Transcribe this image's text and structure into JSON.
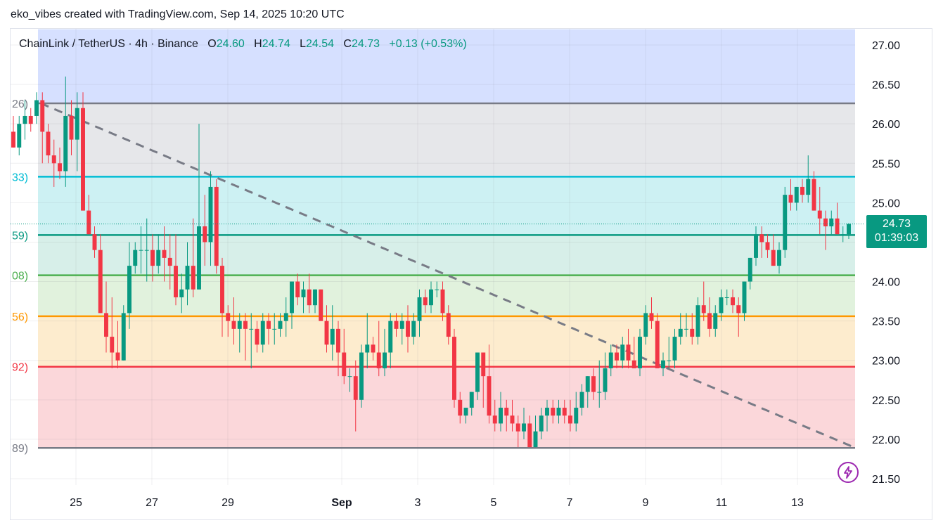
{
  "header": {
    "text": "eko_vibes created with TradingView.com, Sep 14, 2025 10:20 UTC"
  },
  "symbol": {
    "name": "ChainLink / TetherUS · 4h · Binance",
    "o_label": "O",
    "o": "24.60",
    "h_label": "H",
    "h": "24.74",
    "l_label": "L",
    "l": "24.54",
    "c_label": "C",
    "c": "24.73",
    "change": "+0.13 (+0.53%)"
  },
  "price_tag": {
    "price": "24.73",
    "countdown": "01:39:03"
  },
  "colors": {
    "up": "#089981",
    "down": "#f23645",
    "trendline": "#787b86",
    "bolt": "#9c27b0"
  },
  "icons": {
    "bolt": "lightning-bolt-icon"
  },
  "chart_data": {
    "type": "candlestick",
    "yaxis": {
      "ticks": [
        "27.00",
        "26.50",
        "26.00",
        "25.50",
        "25.00",
        "24.50",
        "24.00",
        "23.50",
        "23.00",
        "22.50",
        "22.00",
        "21.50"
      ],
      "range": [
        21.45,
        27.2
      ]
    },
    "xaxis": {
      "ticks": [
        "25",
        "27",
        "29",
        "Sep",
        "3",
        "5",
        "7",
        "9",
        "11",
        "13"
      ]
    },
    "fib_levels": [
      {
        "price": 26.26,
        "label": "26)",
        "color": "#787b86"
      },
      {
        "price": 25.33,
        "label": "33)",
        "color": "#00bcd4"
      },
      {
        "price": 24.59,
        "label": "59)",
        "color": "#089981"
      },
      {
        "price": 24.08,
        "label": "08)",
        "color": "#4caf50"
      },
      {
        "price": 23.56,
        "label": "56)",
        "color": "#ff9800"
      },
      {
        "price": 22.92,
        "label": "92)",
        "color": "#f23645"
      },
      {
        "price": 21.89,
        "label": "89)",
        "color": "#787b86"
      }
    ],
    "zones": [
      {
        "from": 26.26,
        "to": 27.2,
        "color": "#d6e0ff"
      },
      {
        "from": 25.33,
        "to": 26.26,
        "color": "#e6e7ea"
      },
      {
        "from": 24.59,
        "to": 25.33,
        "color": "#cdf1f3"
      },
      {
        "from": 24.08,
        "to": 24.59,
        "color": "#d7efe9"
      },
      {
        "from": 23.56,
        "to": 24.08,
        "color": "#e1f2dd"
      },
      {
        "from": 22.92,
        "to": 23.56,
        "color": "#fdecce"
      },
      {
        "from": 21.89,
        "to": 22.92,
        "color": "#fbd7da"
      }
    ],
    "trendline": {
      "from": {
        "date": "Aug 24",
        "price": 26.26
      },
      "to": {
        "date": "Sep 14",
        "price": 21.9
      }
    },
    "last_price": 24.73,
    "candles": [
      [
        25.9,
        26.1,
        25.7,
        25.7
      ],
      [
        25.7,
        26.1,
        25.6,
        26.0
      ],
      [
        26.0,
        26.3,
        25.8,
        26.1
      ],
      [
        26.1,
        26.2,
        25.9,
        26.0
      ],
      [
        26.1,
        26.4,
        26.0,
        26.3
      ],
      [
        26.3,
        26.4,
        25.5,
        25.9
      ],
      [
        25.9,
        26.0,
        25.5,
        25.6
      ],
      [
        25.6,
        25.8,
        25.2,
        25.5
      ],
      [
        25.5,
        25.7,
        25.3,
        25.4
      ],
      [
        25.4,
        26.6,
        25.2,
        26.1
      ],
      [
        26.1,
        26.3,
        25.6,
        25.8
      ],
      [
        25.8,
        26.4,
        25.4,
        26.2
      ],
      [
        26.2,
        26.4,
        24.9,
        24.9
      ],
      [
        24.9,
        25.1,
        24.6,
        24.6
      ],
      [
        24.6,
        24.7,
        24.3,
        24.4
      ],
      [
        24.4,
        24.6,
        23.6,
        23.6
      ],
      [
        23.6,
        24.0,
        23.1,
        23.3
      ],
      [
        23.3,
        23.8,
        22.9,
        23.1
      ],
      [
        23.1,
        23.5,
        22.9,
        23.0
      ],
      [
        23.0,
        23.7,
        23.0,
        23.6
      ],
      [
        23.6,
        24.5,
        23.4,
        24.2
      ],
      [
        24.2,
        24.5,
        24.1,
        24.4
      ],
      [
        24.4,
        24.7,
        24.1,
        24.4
      ],
      [
        24.4,
        24.8,
        24.0,
        24.4
      ],
      [
        24.4,
        24.6,
        24.0,
        24.2
      ],
      [
        24.2,
        24.6,
        24.1,
        24.4
      ],
      [
        24.4,
        24.7,
        24.0,
        24.3
      ],
      [
        24.3,
        24.6,
        23.9,
        24.2
      ],
      [
        24.2,
        24.6,
        23.7,
        23.8
      ],
      [
        23.8,
        24.1,
        23.6,
        23.9
      ],
      [
        23.9,
        24.5,
        23.7,
        24.2
      ],
      [
        24.2,
        24.8,
        23.8,
        23.9
      ],
      [
        23.9,
        26.0,
        23.9,
        24.7
      ],
      [
        24.7,
        25.1,
        24.2,
        24.5
      ],
      [
        24.5,
        25.4,
        24.2,
        25.2
      ],
      [
        25.2,
        25.3,
        24.1,
        24.2
      ],
      [
        24.2,
        24.3,
        23.3,
        23.6
      ],
      [
        23.6,
        23.7,
        23.3,
        23.5
      ],
      [
        23.5,
        23.8,
        23.2,
        23.4
      ],
      [
        23.4,
        23.6,
        23.1,
        23.5
      ],
      [
        23.5,
        23.6,
        23.0,
        23.4
      ],
      [
        23.4,
        23.6,
        22.9,
        23.4
      ],
      [
        23.4,
        23.5,
        23.1,
        23.2
      ],
      [
        23.2,
        23.6,
        23.1,
        23.5
      ],
      [
        23.5,
        23.6,
        23.2,
        23.4
      ],
      [
        23.4,
        23.6,
        23.2,
        23.4
      ],
      [
        23.4,
        23.6,
        23.3,
        23.5
      ],
      [
        23.5,
        23.8,
        23.3,
        23.6
      ],
      [
        23.6,
        24.0,
        23.4,
        24.0
      ],
      [
        24.0,
        24.1,
        23.7,
        23.8
      ],
      [
        23.8,
        24.0,
        23.6,
        23.9
      ],
      [
        23.9,
        24.1,
        23.6,
        23.7
      ],
      [
        23.7,
        23.9,
        23.6,
        23.9
      ],
      [
        23.9,
        23.9,
        23.5,
        23.5
      ],
      [
        23.5,
        23.7,
        23.1,
        23.2
      ],
      [
        23.2,
        23.7,
        23.0,
        23.4
      ],
      [
        23.4,
        23.5,
        22.8,
        23.1
      ],
      [
        23.1,
        23.4,
        22.7,
        22.8
      ],
      [
        22.8,
        22.9,
        22.6,
        22.8
      ],
      [
        22.8,
        23.0,
        22.1,
        22.5
      ],
      [
        22.5,
        23.2,
        22.4,
        23.1
      ],
      [
        23.1,
        23.6,
        22.9,
        23.2
      ],
      [
        23.2,
        23.3,
        23.0,
        23.1
      ],
      [
        23.1,
        23.5,
        22.8,
        22.9
      ],
      [
        22.9,
        23.4,
        22.8,
        23.1
      ],
      [
        23.1,
        23.6,
        22.9,
        23.5
      ],
      [
        23.5,
        23.6,
        23.3,
        23.4
      ],
      [
        23.4,
        23.6,
        23.2,
        23.5
      ],
      [
        23.5,
        23.7,
        23.1,
        23.3
      ],
      [
        23.3,
        23.6,
        23.2,
        23.5
      ],
      [
        23.5,
        23.9,
        23.3,
        23.8
      ],
      [
        23.8,
        23.9,
        23.6,
        23.7
      ],
      [
        23.7,
        24.0,
        23.6,
        23.9
      ],
      [
        23.9,
        24.0,
        23.8,
        23.9
      ],
      [
        23.9,
        24.0,
        23.5,
        23.6
      ],
      [
        23.6,
        23.7,
        23.2,
        23.3
      ],
      [
        23.3,
        23.4,
        22.4,
        22.5
      ],
      [
        22.5,
        22.6,
        22.2,
        22.3
      ],
      [
        22.3,
        22.4,
        22.2,
        22.4
      ],
      [
        22.4,
        22.6,
        22.3,
        22.6
      ],
      [
        22.6,
        23.1,
        22.5,
        23.1
      ],
      [
        23.1,
        23.1,
        22.4,
        22.8
      ],
      [
        22.8,
        23.2,
        22.2,
        22.3
      ],
      [
        22.3,
        22.5,
        22.1,
        22.2
      ],
      [
        22.2,
        22.6,
        22.1,
        22.4
      ],
      [
        22.4,
        22.5,
        22.1,
        22.3
      ],
      [
        22.3,
        22.5,
        22.1,
        22.2
      ],
      [
        22.2,
        22.3,
        21.9,
        22.1
      ],
      [
        22.1,
        22.4,
        22.0,
        22.2
      ],
      [
        22.2,
        22.3,
        21.9,
        21.9
      ],
      [
        21.9,
        22.3,
        21.9,
        22.1
      ],
      [
        22.1,
        22.4,
        22.0,
        22.3
      ],
      [
        22.3,
        22.5,
        22.1,
        22.4
      ],
      [
        22.4,
        22.5,
        22.2,
        22.3
      ],
      [
        22.3,
        22.5,
        22.2,
        22.4
      ],
      [
        22.4,
        22.5,
        22.2,
        22.3
      ],
      [
        22.3,
        22.5,
        22.1,
        22.2
      ],
      [
        22.2,
        22.6,
        22.1,
        22.4
      ],
      [
        22.4,
        22.7,
        22.3,
        22.6
      ],
      [
        22.6,
        22.8,
        22.4,
        22.8
      ],
      [
        22.8,
        22.9,
        22.5,
        22.6
      ],
      [
        22.6,
        23.0,
        22.4,
        22.6
      ],
      [
        22.6,
        23.1,
        22.5,
        22.9
      ],
      [
        22.9,
        23.2,
        22.8,
        23.1
      ],
      [
        23.1,
        23.2,
        22.9,
        23.0
      ],
      [
        23.0,
        23.3,
        22.9,
        23.2
      ],
      [
        23.2,
        23.4,
        22.9,
        23.0
      ],
      [
        23.0,
        23.3,
        22.9,
        22.9
      ],
      [
        22.9,
        23.4,
        22.8,
        23.3
      ],
      [
        23.3,
        23.7,
        23.2,
        23.6
      ],
      [
        23.6,
        23.8,
        23.4,
        23.5
      ],
      [
        23.5,
        23.6,
        22.9,
        22.9
      ],
      [
        22.9,
        23.1,
        22.8,
        23.0
      ],
      [
        23.0,
        23.3,
        22.9,
        23.0
      ],
      [
        23.0,
        23.4,
        22.9,
        23.3
      ],
      [
        23.3,
        23.6,
        23.2,
        23.4
      ],
      [
        23.4,
        23.6,
        23.3,
        23.4
      ],
      [
        23.4,
        23.6,
        23.2,
        23.3
      ],
      [
        23.3,
        23.8,
        23.2,
        23.7
      ],
      [
        23.7,
        24.0,
        23.5,
        23.6
      ],
      [
        23.6,
        23.8,
        23.3,
        23.4
      ],
      [
        23.4,
        23.7,
        23.3,
        23.6
      ],
      [
        23.6,
        23.9,
        23.5,
        23.8
      ],
      [
        23.8,
        23.9,
        23.7,
        23.8
      ],
      [
        23.8,
        23.9,
        23.6,
        23.7
      ],
      [
        23.7,
        23.8,
        23.3,
        23.6
      ],
      [
        23.6,
        24.0,
        23.5,
        24.0
      ],
      [
        24.0,
        24.3,
        23.9,
        24.3
      ],
      [
        24.3,
        24.7,
        24.2,
        24.6
      ],
      [
        24.6,
        24.7,
        24.3,
        24.5
      ],
      [
        24.5,
        24.6,
        24.3,
        24.4
      ],
      [
        24.4,
        24.6,
        24.2,
        24.2
      ],
      [
        24.2,
        24.5,
        24.1,
        24.4
      ],
      [
        24.4,
        25.2,
        24.3,
        25.1
      ],
      [
        25.1,
        25.3,
        24.9,
        25.0
      ],
      [
        25.0,
        25.2,
        24.9,
        25.2
      ],
      [
        25.2,
        25.3,
        25.0,
        25.1
      ],
      [
        25.1,
        25.6,
        25.0,
        25.3
      ],
      [
        25.3,
        25.4,
        24.9,
        24.9
      ],
      [
        24.9,
        25.2,
        24.6,
        24.8
      ],
      [
        24.8,
        24.9,
        24.4,
        24.7
      ],
      [
        24.7,
        24.9,
        24.6,
        24.8
      ],
      [
        24.8,
        25.0,
        24.6,
        24.6
      ],
      [
        24.6,
        24.7,
        24.5,
        24.6
      ],
      [
        24.6,
        24.74,
        24.54,
        24.73
      ]
    ]
  }
}
